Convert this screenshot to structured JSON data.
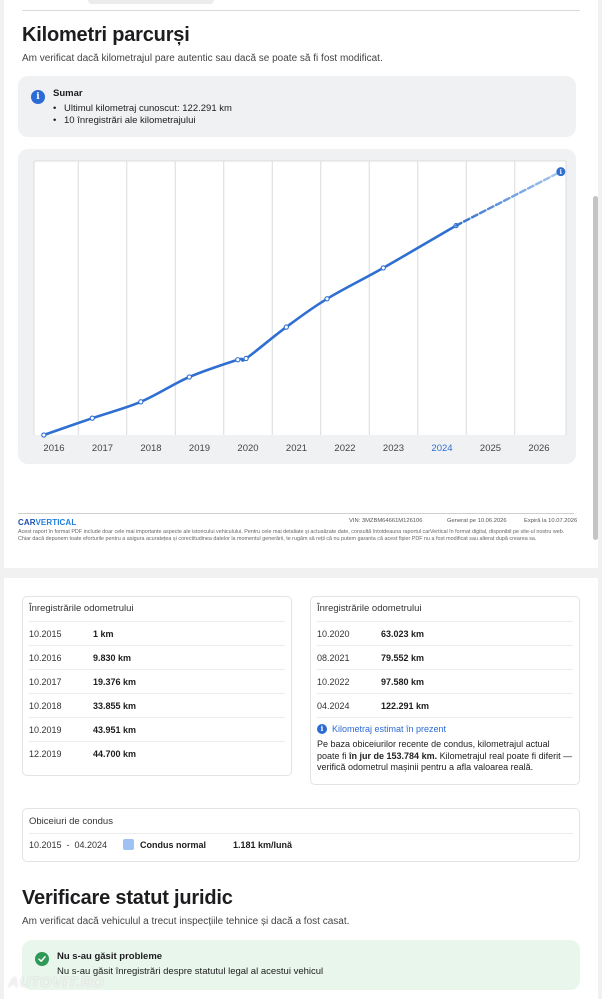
{
  "mileage_section": {
    "title": "Kilometri parcurși",
    "subtitle": "Am verificat dacă kilometrajul pare autentic sau dacă se poate să fi fost modificat.",
    "summary": {
      "heading": "Sumar",
      "items": [
        "Ultimul kilometraj cunoscut: 122.291 km",
        "10 înregistrări ale kilometrajului"
      ]
    }
  },
  "chart_data": {
    "type": "line",
    "title": "",
    "xlabel": "",
    "ylabel": "",
    "x_ticks": [
      "2016",
      "2017",
      "2018",
      "2019",
      "2020",
      "2021",
      "2022",
      "2023",
      "2024",
      "2025",
      "2026"
    ],
    "highlighted_tick": "2024",
    "xlim": [
      2015.7,
      2026.45
    ],
    "ylim": [
      0,
      160000
    ],
    "series": [
      {
        "style": "solid",
        "points": [
          {
            "x": 2015.79,
            "y": 1
          },
          {
            "x": 2016.79,
            "y": 9830
          },
          {
            "x": 2017.79,
            "y": 19376
          },
          {
            "x": 2018.79,
            "y": 33855
          },
          {
            "x": 2019.79,
            "y": 43951
          },
          {
            "x": 2019.96,
            "y": 44700
          },
          {
            "x": 2020.79,
            "y": 63023
          },
          {
            "x": 2021.63,
            "y": 79552
          },
          {
            "x": 2022.79,
            "y": 97580
          },
          {
            "x": 2024.29,
            "y": 122291
          }
        ]
      },
      {
        "style": "dashed",
        "estimated": true,
        "points": [
          {
            "x": 2024.29,
            "y": 122291
          },
          {
            "x": 2026.45,
            "y": 153784
          }
        ]
      }
    ],
    "grid": true,
    "colors": {
      "line": "#2f6fd1",
      "estimate": "#a9c9f2",
      "grid": "#dcdcdc"
    }
  },
  "report_footer": {
    "brand_a": "CAR",
    "brand_b": "VERTICAL",
    "vin": "VIN: 3MZBM64661M126106",
    "generated": "Generat pe 10.06.2026",
    "expires": "Expiră la 10.07.2026",
    "note": "Acest raport în format PDF include doar cele mai importante aspecte ale istoricului vehiculului. Pentru cele mai detaliate și actualizate date, consultă întotdeauna raportul carVertical în format digital, disponibil pe site-ul nostru web. Chiar dacă depunem toate eforturile pentru a asigura acuratețea și corectitudinea datelor la momentul generării, te rugăm să reții că nu putem garanta că acest fișier PDF nu a fost modificat sau alterat după crearea sa."
  },
  "odometer_records": {
    "left": {
      "heading": "Înregistrările odometrului",
      "rows": [
        {
          "date": "10.2015",
          "value": "1 km"
        },
        {
          "date": "10.2016",
          "value": "9.830 km"
        },
        {
          "date": "10.2017",
          "value": "19.376 km"
        },
        {
          "date": "10.2018",
          "value": "33.855 km"
        },
        {
          "date": "10.2019",
          "value": "43.951 km"
        },
        {
          "date": "12.2019",
          "value": "44.700 km"
        }
      ]
    },
    "right": {
      "heading": "Înregistrările odometrului",
      "rows": [
        {
          "date": "10.2020",
          "value": "63.023 km"
        },
        {
          "date": "08.2021",
          "value": "79.552 km"
        },
        {
          "date": "10.2022",
          "value": "97.580 km"
        },
        {
          "date": "04.2024",
          "value": "122.291 km"
        }
      ],
      "estimate": {
        "heading": "Kilometraj estimat în prezent",
        "text_before": "Pe baza obiceiurilor recente de condus, kilometrajul actual poate fi ",
        "text_bold": "în jur de 153.784 km.",
        "text_after": " Kilometrajul real poate fi diferit — verifică odometrul mașinii pentru a afla valoarea reală."
      }
    }
  },
  "driving_habits": {
    "heading": "Obiceiuri de condus",
    "range": "10.2015  -  04.2024",
    "style": "Condus normal",
    "rate": "1.181 km/lună",
    "swatch_color": "#9ec2f4"
  },
  "legal_section": {
    "title": "Verificare statut juridic",
    "subtitle": "Am verificat dacă vehiculul a trecut inspecțiile tehnice și dacă a fost casat.",
    "status": {
      "heading": "Nu s-au găsit probleme",
      "text": "Nu s-au găsit înregistrări despre statutul legal al acestui vehicul"
    }
  },
  "watermark": {
    "text": "AUTOVIT.RO",
    "sub": ""
  }
}
